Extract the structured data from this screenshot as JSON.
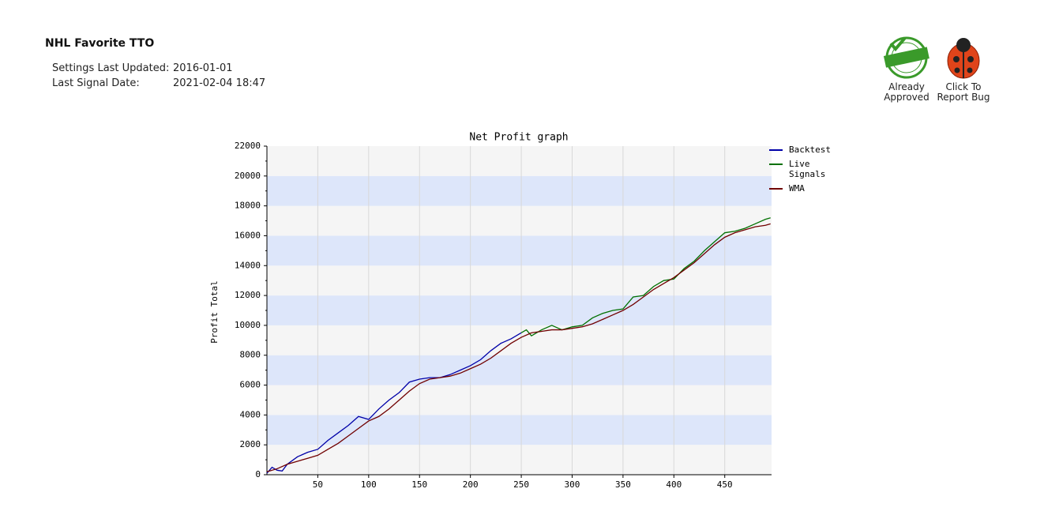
{
  "header": {
    "title": "NHL Favorite TTO",
    "fields": [
      {
        "label": "Settings Last Updated:",
        "value": "2016-01-01"
      },
      {
        "label": "Last Signal Date:",
        "value": "2021-02-04 18:47"
      }
    ],
    "badges": [
      {
        "label": "Already Approved"
      },
      {
        "label": "Click To Report Bug"
      }
    ]
  },
  "chart_data": {
    "type": "line",
    "title": "Net Profit graph",
    "ylabel": "Profit Total",
    "xlim": [
      0,
      496
    ],
    "xticks": [
      50,
      100,
      150,
      200,
      250,
      300,
      350,
      400,
      450
    ],
    "ylim": [
      0,
      22000
    ],
    "yticks": [
      0,
      2000,
      4000,
      6000,
      8000,
      10000,
      12000,
      14000,
      16000,
      18000,
      20000,
      22000
    ],
    "grid": true,
    "legend": "right",
    "series": [
      {
        "name": "Backtest",
        "color": "#0000a8",
        "x": [
          0,
          5,
          10,
          15,
          20,
          30,
          40,
          50,
          60,
          70,
          80,
          90,
          100,
          110,
          120,
          130,
          140,
          150,
          160,
          170,
          180,
          190,
          200,
          210,
          220,
          230,
          240,
          250
        ],
        "values": [
          100,
          500,
          300,
          250,
          700,
          1200,
          1500,
          1700,
          2300,
          2800,
          3300,
          3900,
          3700,
          4400,
          5000,
          5500,
          6200,
          6400,
          6500,
          6500,
          6700,
          7000,
          7300,
          7700,
          8300,
          8800,
          9100,
          9500
        ]
      },
      {
        "name": "Live Signals",
        "color": "#007000",
        "x": [
          250,
          255,
          260,
          270,
          280,
          290,
          300,
          310,
          320,
          330,
          340,
          350,
          360,
          370,
          380,
          390,
          400,
          410,
          420,
          430,
          440,
          450,
          460,
          470,
          480,
          490,
          495
        ],
        "values": [
          9500,
          9700,
          9300,
          9700,
          10000,
          9700,
          9900,
          10000,
          10500,
          10800,
          11000,
          11100,
          11900,
          12000,
          12600,
          13000,
          13100,
          13800,
          14300,
          15000,
          15600,
          16200,
          16300,
          16500,
          16800,
          17100,
          17200
        ]
      },
      {
        "name": "WMA",
        "color": "#700000",
        "x": [
          0,
          10,
          20,
          30,
          40,
          50,
          60,
          70,
          80,
          90,
          100,
          110,
          120,
          130,
          140,
          150,
          160,
          170,
          180,
          190,
          200,
          210,
          220,
          230,
          240,
          250,
          260,
          270,
          280,
          290,
          300,
          310,
          320,
          330,
          340,
          350,
          360,
          370,
          380,
          390,
          400,
          410,
          420,
          430,
          440,
          450,
          460,
          470,
          480,
          490,
          495
        ],
        "values": [
          200,
          400,
          700,
          900,
          1100,
          1300,
          1700,
          2100,
          2600,
          3100,
          3600,
          3900,
          4400,
          5000,
          5600,
          6100,
          6400,
          6500,
          6600,
          6800,
          7100,
          7400,
          7800,
          8300,
          8800,
          9200,
          9500,
          9600,
          9700,
          9700,
          9800,
          9900,
          10100,
          10400,
          10700,
          11000,
          11400,
          11900,
          12400,
          12800,
          13200,
          13700,
          14200,
          14800,
          15400,
          15900,
          16200,
          16400,
          16600,
          16700,
          16800
        ]
      }
    ]
  }
}
